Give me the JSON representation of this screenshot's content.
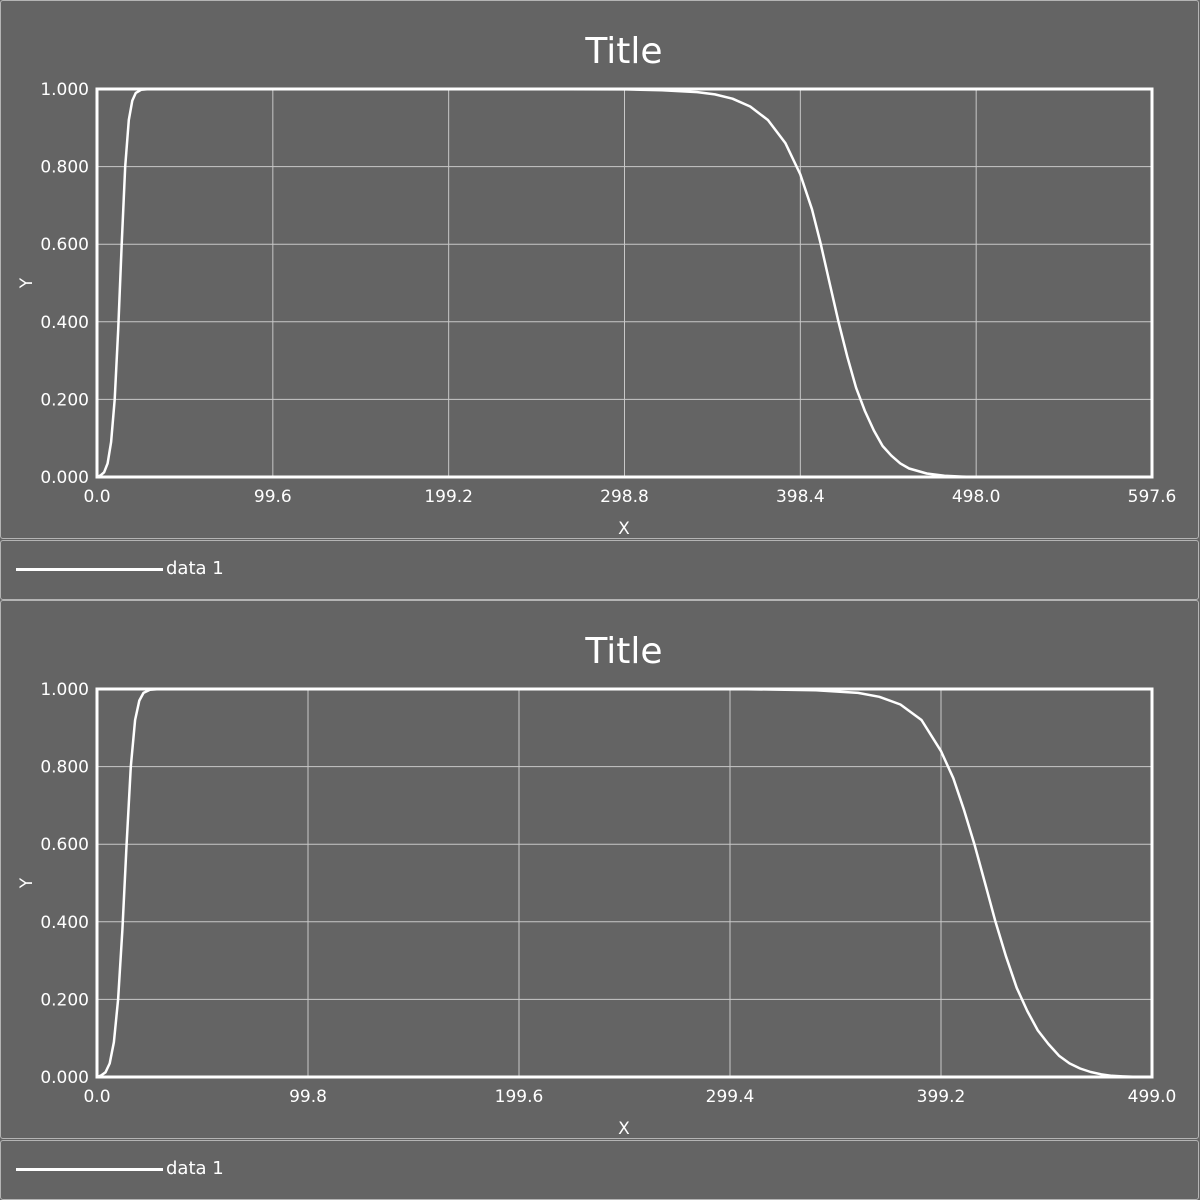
{
  "colors": {
    "background": "#646464",
    "axes_frame": "#ffffff",
    "grid": "#c8c8c8",
    "line": "#ffffff"
  },
  "chart_data": [
    {
      "type": "line",
      "title": "Title",
      "xlabel": "X",
      "ylabel": "Y",
      "xlim": [
        0.0,
        597.6
      ],
      "ylim": [
        0.0,
        1.0
      ],
      "xticks": [
        "0.0",
        "99.6",
        "199.2",
        "298.8",
        "398.4",
        "498.0",
        "597.6"
      ],
      "yticks": [
        "0.000",
        "0.200",
        "0.400",
        "0.600",
        "0.800",
        "1.000"
      ],
      "grid": true,
      "legend_position": "below-plot",
      "series": [
        {
          "name": "data 1",
          "x": [
            0,
            2,
            4,
            6,
            8,
            10,
            12,
            14,
            16,
            18,
            20,
            22,
            25,
            30,
            40,
            60,
            100,
            200,
            300,
            320,
            340,
            350,
            360,
            370,
            380,
            390,
            398.4,
            405,
            410,
            415,
            420,
            425,
            430,
            435,
            440,
            445,
            450,
            455,
            460,
            470,
            480,
            490,
            498,
            520,
            560,
            597.6
          ],
          "y": [
            0.0,
            0.004,
            0.012,
            0.035,
            0.09,
            0.2,
            0.38,
            0.6,
            0.8,
            0.92,
            0.97,
            0.99,
            0.998,
            1.0,
            1.0,
            1.0,
            1.0,
            1.0,
            0.999,
            0.997,
            0.992,
            0.986,
            0.975,
            0.955,
            0.92,
            0.86,
            0.78,
            0.69,
            0.6,
            0.5,
            0.4,
            0.31,
            0.23,
            0.17,
            0.12,
            0.08,
            0.055,
            0.035,
            0.022,
            0.009,
            0.003,
            0.001,
            0.0,
            0.0,
            0.0,
            0.0
          ]
        }
      ]
    },
    {
      "type": "line",
      "title": "Title",
      "xlabel": "X",
      "ylabel": "Y",
      "xlim": [
        0.0,
        499.0
      ],
      "ylim": [
        0.0,
        1.0
      ],
      "xticks": [
        "0.0",
        "99.8",
        "199.6",
        "299.4",
        "399.2",
        "499.0"
      ],
      "yticks": [
        "0.000",
        "0.200",
        "0.400",
        "0.600",
        "0.800",
        "1.000"
      ],
      "grid": true,
      "legend_position": "below-plot",
      "series": [
        {
          "name": "data 1",
          "x": [
            0,
            2,
            4,
            6,
            8,
            10,
            12,
            14,
            16,
            18,
            20,
            22,
            25,
            30,
            40,
            60,
            100,
            200,
            300,
            340,
            360,
            370,
            380,
            390,
            399.2,
            405,
            410,
            415,
            420,
            425,
            430,
            435,
            440,
            445,
            450,
            455,
            460,
            465,
            470,
            475,
            480,
            485,
            490,
            495,
            499
          ],
          "y": [
            0.0,
            0.004,
            0.012,
            0.035,
            0.09,
            0.2,
            0.38,
            0.6,
            0.8,
            0.92,
            0.97,
            0.99,
            0.998,
            1.0,
            1.0,
            1.0,
            1.0,
            1.0,
            1.0,
            0.997,
            0.99,
            0.98,
            0.96,
            0.92,
            0.84,
            0.77,
            0.69,
            0.6,
            0.5,
            0.4,
            0.31,
            0.23,
            0.17,
            0.12,
            0.085,
            0.055,
            0.035,
            0.022,
            0.013,
            0.007,
            0.003,
            0.0015,
            0.0005,
            0.0001,
            0.0
          ]
        }
      ]
    }
  ]
}
